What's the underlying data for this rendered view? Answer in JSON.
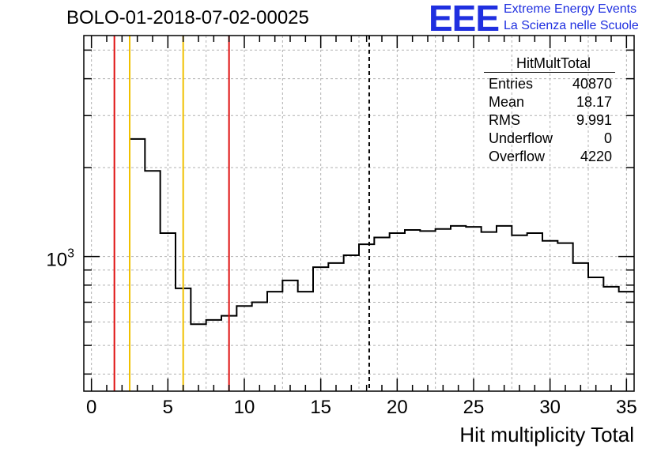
{
  "title": "BOLO-01-2018-07-02-00025",
  "logo": {
    "text": "EEE",
    "line1": "Extreme Energy Events",
    "line2": "La Scienza nelle Scuole",
    "color": "#1f2fe0"
  },
  "stats": {
    "title": "HitMultTotal",
    "rows": [
      {
        "label": "Entries",
        "value": "40870"
      },
      {
        "label": "Mean",
        "value": "18.17"
      },
      {
        "label": "RMS",
        "value": "9.991"
      },
      {
        "label": "Underflow",
        "value": "0"
      },
      {
        "label": "Overflow",
        "value": "4220"
      }
    ]
  },
  "chart_data": {
    "type": "histogram",
    "xlabel": "Hit multiplicity Total",
    "xlim": [
      -0.5,
      35.5
    ],
    "ylim": [
      350,
      5600
    ],
    "yscale": "log",
    "grid": true,
    "xticks": [
      0,
      5,
      10,
      15,
      20,
      25,
      30,
      35
    ],
    "yticks": [
      {
        "value": 1000,
        "base": "10",
        "exp": "3"
      }
    ],
    "bins": {
      "edges_start": 2.5,
      "width": 1,
      "values": [
        2500,
        1950,
        1200,
        780,
        590,
        610,
        630,
        680,
        700,
        760,
        830,
        760,
        920,
        950,
        1010,
        1100,
        1160,
        1200,
        1230,
        1220,
        1240,
        1270,
        1260,
        1210,
        1270,
        1180,
        1200,
        1130,
        1110,
        950,
        850,
        790,
        760
      ],
      "color": "#000000"
    },
    "vlines": [
      {
        "x": 1.5,
        "color": "#e01010",
        "style": "solid"
      },
      {
        "x": 2.5,
        "color": "#f0c000",
        "style": "solid"
      },
      {
        "x": 6.0,
        "color": "#f0c000",
        "style": "solid"
      },
      {
        "x": 9.0,
        "color": "#e01010",
        "style": "solid"
      },
      {
        "x": 18.17,
        "color": "#000000",
        "style": "dashed"
      }
    ]
  }
}
